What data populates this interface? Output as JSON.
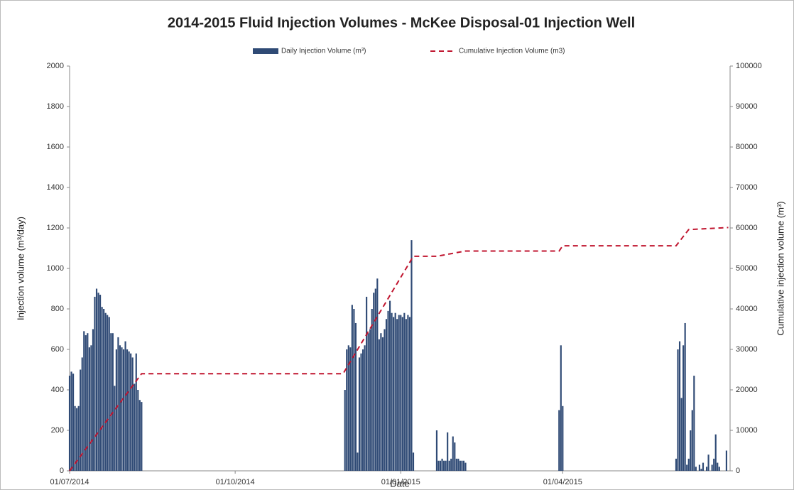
{
  "chart_data": {
    "type": "bar",
    "title": "2014-2015 Fluid Injection Volumes - McKee Disposal-01 Injection Well",
    "xlabel": "Date",
    "ylabel": "Injection volume (m³/day)",
    "y2label": "Cumulative injection volume (m³)",
    "xlim": [
      "2014-07-01",
      "2015-07-03"
    ],
    "xticks": [
      {
        "value": "2014-07-01",
        "label": "01/07/2014"
      },
      {
        "value": "2014-10-01",
        "label": "01/10/2014"
      },
      {
        "value": "2015-01-01",
        "label": "01/01/2015"
      },
      {
        "value": "2015-04-01",
        "label": "01/04/2015"
      }
    ],
    "ylim": [
      0,
      2000
    ],
    "yticks": [
      0,
      200,
      400,
      600,
      800,
      1000,
      1200,
      1400,
      1600,
      1800,
      2000
    ],
    "y2lim": [
      0,
      100000
    ],
    "y2ticks": [
      0,
      10000,
      20000,
      30000,
      40000,
      50000,
      60000,
      70000,
      80000,
      90000,
      100000
    ],
    "legend": "top",
    "series": [
      {
        "name": "Daily Injection Volume (m³)",
        "type": "bar",
        "color": "#2f4a75",
        "x": [
          "2014-07-01",
          "2014-07-02",
          "2014-07-03",
          "2014-07-04",
          "2014-07-05",
          "2014-07-06",
          "2014-07-07",
          "2014-07-08",
          "2014-07-09",
          "2014-07-10",
          "2014-07-11",
          "2014-07-12",
          "2014-07-13",
          "2014-07-14",
          "2014-07-15",
          "2014-07-16",
          "2014-07-17",
          "2014-07-18",
          "2014-07-19",
          "2014-07-20",
          "2014-07-21",
          "2014-07-22",
          "2014-07-23",
          "2014-07-24",
          "2014-07-25",
          "2014-07-26",
          "2014-07-27",
          "2014-07-28",
          "2014-07-29",
          "2014-07-30",
          "2014-07-31",
          "2014-08-01",
          "2014-08-02",
          "2014-08-03",
          "2014-08-04",
          "2014-08-05",
          "2014-08-06",
          "2014-08-07",
          "2014-08-08",
          "2014-08-09",
          "2014-08-10",
          "2014-12-01",
          "2014-12-02",
          "2014-12-03",
          "2014-12-04",
          "2014-12-05",
          "2014-12-06",
          "2014-12-07",
          "2014-12-08",
          "2014-12-09",
          "2014-12-10",
          "2014-12-11",
          "2014-12-12",
          "2014-12-13",
          "2014-12-14",
          "2014-12-15",
          "2014-12-16",
          "2014-12-17",
          "2014-12-18",
          "2014-12-19",
          "2014-12-20",
          "2014-12-21",
          "2014-12-22",
          "2014-12-23",
          "2014-12-24",
          "2014-12-25",
          "2014-12-26",
          "2014-12-27",
          "2014-12-28",
          "2014-12-29",
          "2014-12-30",
          "2014-12-31",
          "2015-01-01",
          "2015-01-02",
          "2015-01-03",
          "2015-01-04",
          "2015-01-05",
          "2015-01-06",
          "2015-01-07",
          "2015-01-08",
          "2015-01-21",
          "2015-01-22",
          "2015-01-23",
          "2015-01-24",
          "2015-01-25",
          "2015-01-26",
          "2015-01-27",
          "2015-01-28",
          "2015-01-29",
          "2015-01-30",
          "2015-01-31",
          "2015-02-01",
          "2015-02-02",
          "2015-02-03",
          "2015-02-04",
          "2015-02-05",
          "2015-02-06",
          "2015-03-30",
          "2015-03-31",
          "2015-04-01",
          "2015-06-03",
          "2015-06-04",
          "2015-06-05",
          "2015-06-06",
          "2015-06-07",
          "2015-06-08",
          "2015-06-09",
          "2015-06-10",
          "2015-06-11",
          "2015-06-12",
          "2015-06-13",
          "2015-06-14",
          "2015-06-15",
          "2015-06-16",
          "2015-06-17",
          "2015-06-18",
          "2015-06-19",
          "2015-06-20",
          "2015-06-21",
          "2015-06-22",
          "2015-06-23",
          "2015-06-24",
          "2015-06-25",
          "2015-06-26",
          "2015-06-27",
          "2015-06-28",
          "2015-06-29",
          "2015-06-30",
          "2015-07-01",
          "2015-07-02"
        ],
        "values": [
          470,
          490,
          480,
          320,
          310,
          320,
          500,
          560,
          690,
          670,
          680,
          610,
          620,
          700,
          860,
          900,
          880,
          870,
          810,
          800,
          780,
          770,
          760,
          680,
          680,
          420,
          600,
          660,
          620,
          610,
          600,
          640,
          600,
          590,
          580,
          560,
          430,
          580,
          400,
          350,
          340,
          400,
          600,
          620,
          610,
          820,
          800,
          730,
          90,
          560,
          580,
          600,
          620,
          860,
          680,
          700,
          800,
          880,
          900,
          950,
          650,
          680,
          660,
          700,
          750,
          790,
          840,
          780,
          760,
          780,
          750,
          770,
          770,
          760,
          780,
          750,
          770,
          760,
          1140,
          90,
          200,
          50,
          50,
          60,
          50,
          50,
          190,
          50,
          60,
          170,
          140,
          60,
          60,
          50,
          50,
          50,
          40,
          300,
          620,
          320,
          60,
          600,
          640,
          360,
          620,
          730,
          30,
          60,
          200,
          300,
          470,
          20,
          0,
          30,
          10,
          40,
          0,
          20,
          80,
          0,
          30,
          60,
          180,
          40,
          20,
          0,
          0,
          0,
          100,
          0
        ]
      },
      {
        "name": "Cumulative Injection Volume (m3)",
        "type": "line",
        "axis": "y2",
        "color": "#c0152f",
        "x": [
          "2014-07-01",
          "2014-08-10",
          "2014-11-30",
          "2015-01-08",
          "2015-01-21",
          "2015-02-06",
          "2015-03-30",
          "2015-04-01",
          "2015-06-03",
          "2015-06-10",
          "2015-07-02"
        ],
        "values": [
          0,
          24000,
          24000,
          53000,
          53000,
          54300,
          54300,
          55600,
          55600,
          59600,
          60100
        ]
      }
    ]
  }
}
